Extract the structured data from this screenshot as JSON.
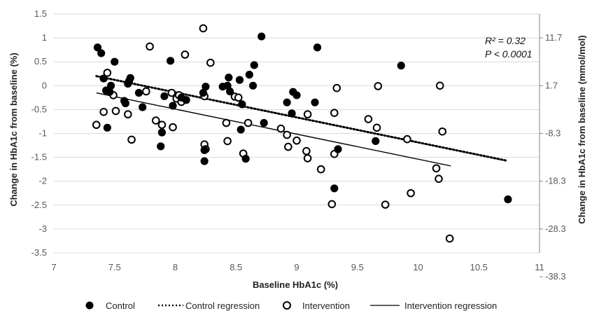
{
  "chart_data": {
    "type": "scatter",
    "xlabel": "Baseline HbA1c (%)",
    "ylabel": "Change in HbA1c  from baseline (%)",
    "y2label": "Change in HbA1c  from baseline (mmol/mol)",
    "xlim": [
      7,
      11
    ],
    "ylim": [
      -3.5,
      1.5
    ],
    "xticks": [
      "7",
      "7.5",
      "8",
      "8.5",
      "9",
      "9.5",
      "10",
      "10.5",
      "11"
    ],
    "yticks": [
      "1.5",
      "1",
      "0.5",
      "0",
      "-0.5",
      "-1",
      "-1.5",
      "-2",
      "-2.5",
      "-3",
      "-3.5"
    ],
    "y2ticks": [
      "11.7",
      "1.7",
      "-8.3",
      "-18.3",
      "-28.3",
      "-38.3"
    ],
    "annotation": {
      "r2": "R² = 0.32",
      "p": "P < 0.0001"
    },
    "legend_position": "bottom",
    "series": [
      {
        "name": "Control",
        "marker": "filled-circle",
        "color": "#000000",
        "points": [
          [
            7.36,
            0.8
          ],
          [
            7.39,
            0.68
          ],
          [
            7.41,
            0.15
          ],
          [
            7.43,
            -0.1
          ],
          [
            7.44,
            -0.88
          ],
          [
            7.46,
            -0.13
          ],
          [
            7.47,
            0.0
          ],
          [
            7.5,
            0.5
          ],
          [
            7.58,
            -0.32
          ],
          [
            7.59,
            -0.37
          ],
          [
            7.61,
            0.04
          ],
          [
            7.62,
            0.1
          ],
          [
            7.63,
            0.16
          ],
          [
            7.7,
            -0.15
          ],
          [
            7.73,
            -0.45
          ],
          [
            7.88,
            -1.27
          ],
          [
            7.89,
            -0.98
          ],
          [
            7.91,
            -0.22
          ],
          [
            7.96,
            0.52
          ],
          [
            7.98,
            -0.42
          ],
          [
            8.05,
            -0.25
          ],
          [
            8.09,
            -0.3
          ],
          [
            8.23,
            -0.15
          ],
          [
            8.24,
            -1.58
          ],
          [
            8.24,
            -1.35
          ],
          [
            8.25,
            -0.02
          ],
          [
            8.39,
            -0.02
          ],
          [
            8.43,
            0.0
          ],
          [
            8.44,
            0.17
          ],
          [
            8.45,
            -0.12
          ],
          [
            8.53,
            0.12
          ],
          [
            8.54,
            -0.92
          ],
          [
            8.55,
            -0.39
          ],
          [
            8.58,
            -1.53
          ],
          [
            8.61,
            0.23
          ],
          [
            8.64,
            0.0
          ],
          [
            8.65,
            0.43
          ],
          [
            8.71,
            1.03
          ],
          [
            8.73,
            -0.78
          ],
          [
            8.92,
            -0.35
          ],
          [
            8.96,
            -0.58
          ],
          [
            8.97,
            -0.13
          ],
          [
            9.0,
            -0.2
          ],
          [
            9.15,
            -0.35
          ],
          [
            9.17,
            0.8
          ],
          [
            9.31,
            -2.15
          ],
          [
            9.34,
            -1.33
          ],
          [
            9.65,
            -1.16
          ],
          [
            9.86,
            0.42
          ],
          [
            10.74,
            -2.38
          ]
        ]
      },
      {
        "name": "Control regression",
        "line": "dotted",
        "color": "#000000",
        "from": [
          7.35,
          0.2
        ],
        "to": [
          10.73,
          -1.57
        ]
      },
      {
        "name": "Intervention",
        "marker": "open-circle",
        "color": "#000000",
        "points": [
          [
            7.35,
            -0.82
          ],
          [
            7.41,
            -0.55
          ],
          [
            7.44,
            0.27
          ],
          [
            7.45,
            -0.1
          ],
          [
            7.49,
            -0.2
          ],
          [
            7.51,
            -0.53
          ],
          [
            7.61,
            -0.6
          ],
          [
            7.64,
            -1.13
          ],
          [
            7.76,
            -0.12
          ],
          [
            7.79,
            0.82
          ],
          [
            7.84,
            -0.73
          ],
          [
            7.89,
            -0.82
          ],
          [
            7.97,
            -0.15
          ],
          [
            7.98,
            -0.87
          ],
          [
            8.01,
            -0.27
          ],
          [
            8.03,
            -0.2
          ],
          [
            8.05,
            -0.34
          ],
          [
            8.08,
            0.65
          ],
          [
            8.23,
            1.2
          ],
          [
            8.24,
            -0.22
          ],
          [
            8.24,
            -1.23
          ],
          [
            8.25,
            -1.33
          ],
          [
            8.29,
            0.48
          ],
          [
            8.42,
            -0.78
          ],
          [
            8.43,
            -1.16
          ],
          [
            8.49,
            -0.23
          ],
          [
            8.52,
            -0.25
          ],
          [
            8.56,
            -1.42
          ],
          [
            8.6,
            -0.78
          ],
          [
            8.87,
            -0.9
          ],
          [
            8.92,
            -1.03
          ],
          [
            8.93,
            -1.28
          ],
          [
            9.0,
            -1.15
          ],
          [
            9.08,
            -1.37
          ],
          [
            9.09,
            -1.52
          ],
          [
            9.09,
            -0.6
          ],
          [
            9.2,
            -1.75
          ],
          [
            9.29,
            -2.48
          ],
          [
            9.31,
            -0.57
          ],
          [
            9.31,
            -1.43
          ],
          [
            9.33,
            -0.05
          ],
          [
            9.59,
            -0.7
          ],
          [
            9.66,
            -0.88
          ],
          [
            9.67,
            -0.01
          ],
          [
            9.73,
            -2.49
          ],
          [
            9.91,
            -1.12
          ],
          [
            9.94,
            -2.25
          ],
          [
            10.15,
            -1.73
          ],
          [
            10.17,
            -1.95
          ],
          [
            10.18,
            0.0
          ],
          [
            10.2,
            -0.96
          ],
          [
            10.26,
            -3.2
          ]
        ]
      },
      {
        "name": "Intervention regression",
        "line": "solid",
        "color": "#000000",
        "from": [
          7.35,
          -0.15
        ],
        "to": [
          10.27,
          -1.68
        ]
      }
    ]
  }
}
